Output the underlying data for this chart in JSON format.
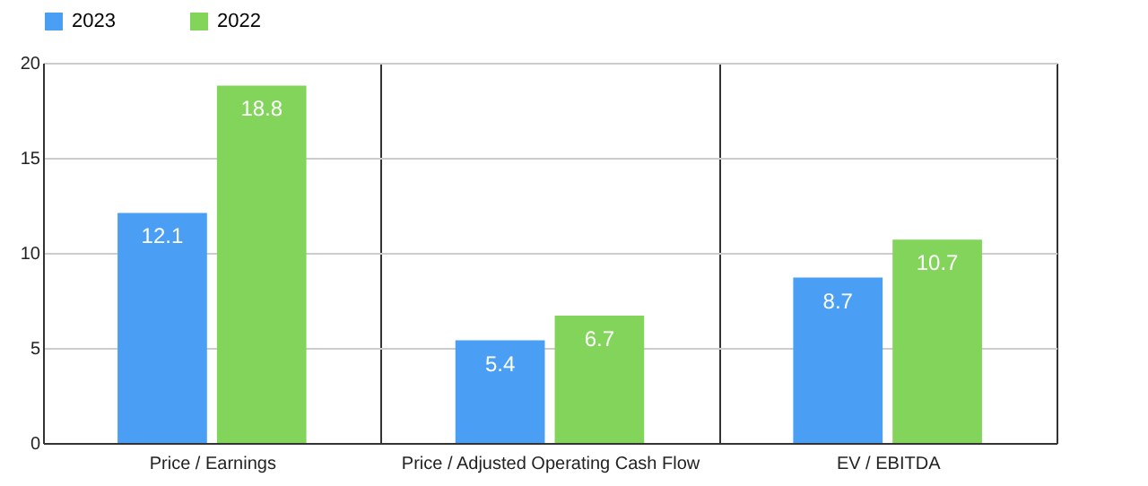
{
  "chart_data": {
    "type": "bar",
    "categories": [
      "Price / Earnings",
      "Price / Adjusted Operating Cash Flow",
      "EV / EBITDA"
    ],
    "series": [
      {
        "name": "2023",
        "color": "#4a9ff5",
        "values": [
          12.1,
          5.4,
          8.7
        ]
      },
      {
        "name": "2022",
        "color": "#82d45a",
        "values": [
          18.8,
          6.7,
          10.7
        ]
      }
    ],
    "ylim": [
      0,
      20
    ],
    "yticks": [
      0,
      5,
      10,
      15,
      20
    ],
    "grid": true,
    "legend": "top",
    "data_labels": true
  }
}
